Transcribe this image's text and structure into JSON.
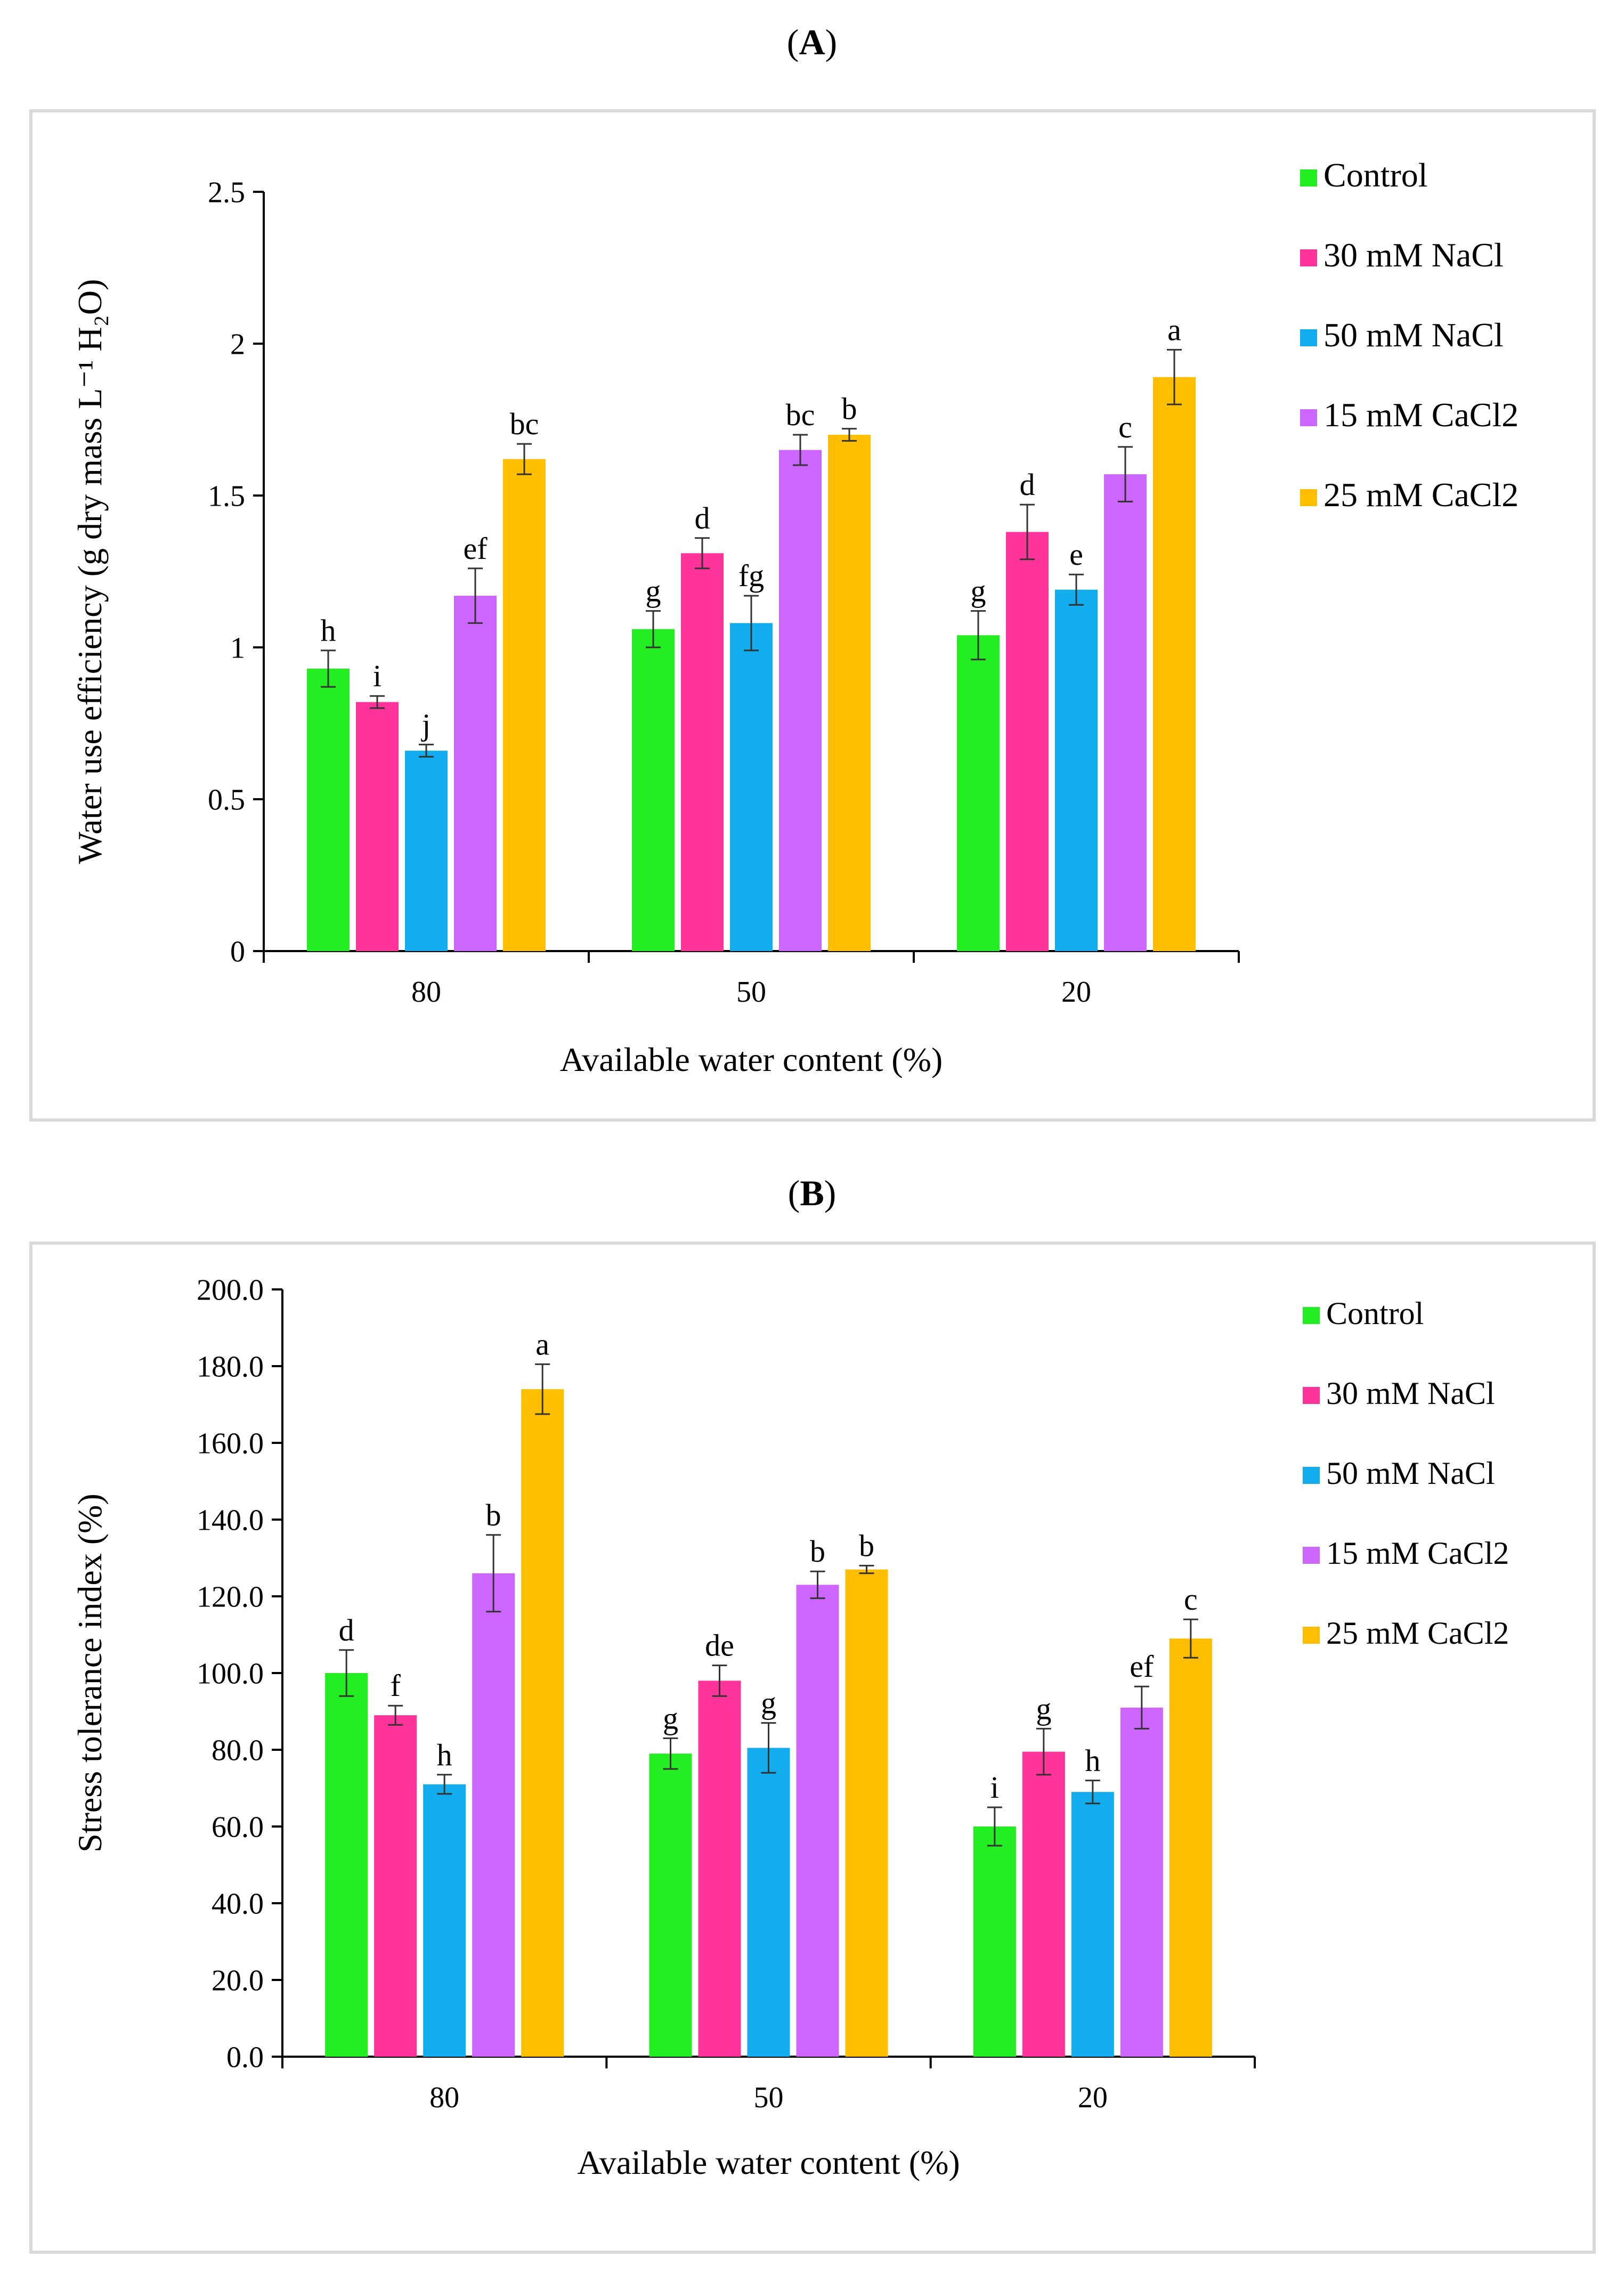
{
  "panels": [
    {
      "label": "A",
      "chart_data": {
        "type": "bar",
        "title": "(A)",
        "xlabel": "Available water content (%)",
        "ylabel": "Water use efficiency (g dry mass L⁻¹ H₂O)",
        "categories": [
          "80",
          "50",
          "20"
        ],
        "ylim": [
          0,
          2.5
        ],
        "yticks": [
          "0",
          "0.5",
          "1",
          "1.5",
          "2",
          "2.5"
        ],
        "ytick_values": [
          0,
          0.5,
          1,
          1.5,
          2,
          2.5
        ],
        "grid": false,
        "legend_position": "right",
        "series": [
          {
            "name": "Control",
            "color": "#22ee22",
            "values": [
              0.93,
              1.06,
              1.04
            ],
            "errors": [
              0.06,
              0.06,
              0.08
            ],
            "letters": [
              "h",
              "g",
              "g"
            ]
          },
          {
            "name": "30 mM NaCl",
            "color": "#ff3399",
            "values": [
              0.82,
              1.31,
              1.38
            ],
            "errors": [
              0.02,
              0.05,
              0.09
            ],
            "letters": [
              "i",
              "d",
              "d"
            ]
          },
          {
            "name": "50 mM NaCl",
            "color": "#12adef",
            "values": [
              0.66,
              1.08,
              1.19
            ],
            "errors": [
              0.02,
              0.09,
              0.05
            ],
            "letters": [
              "j",
              "fg",
              "e"
            ]
          },
          {
            "name": "15 mM CaCl2",
            "color": "#cc66ff",
            "values": [
              1.17,
              1.65,
              1.57
            ],
            "errors": [
              0.09,
              0.05,
              0.09
            ],
            "letters": [
              "ef",
              "bc",
              "c"
            ]
          },
          {
            "name": "25 mM CaCl2",
            "color": "#ffbf00",
            "values": [
              1.62,
              1.7,
              1.89
            ],
            "errors": [
              0.05,
              0.02,
              0.09
            ],
            "letters": [
              "bc",
              "b",
              "a"
            ]
          }
        ]
      }
    },
    {
      "label": "B",
      "chart_data": {
        "type": "bar",
        "title": "(B)",
        "xlabel": "Available water content (%)",
        "ylabel": "Stress tolerance index (%)",
        "categories": [
          "80",
          "50",
          "20"
        ],
        "ylim": [
          0,
          200
        ],
        "yticks": [
          "0.0",
          "20.0",
          "40.0",
          "60.0",
          "80.0",
          "100.0",
          "120.0",
          "140.0",
          "160.0",
          "180.0",
          "200.0"
        ],
        "ytick_values": [
          0,
          20,
          40,
          60,
          80,
          100,
          120,
          140,
          160,
          180,
          200
        ],
        "grid": false,
        "legend_position": "right",
        "series": [
          {
            "name": "Control",
            "color": "#22ee22",
            "values": [
              100.0,
              79.0,
              60.0
            ],
            "errors": [
              6.0,
              4.0,
              5.0
            ],
            "letters": [
              "d",
              "g",
              "i"
            ]
          },
          {
            "name": "30 mM NaCl",
            "color": "#ff3399",
            "values": [
              89.0,
              98.0,
              79.5
            ],
            "errors": [
              2.5,
              4.0,
              6.0
            ],
            "letters": [
              "f",
              "de",
              "g"
            ]
          },
          {
            "name": "50 mM NaCl",
            "color": "#12adef",
            "values": [
              71.0,
              80.5,
              69.0
            ],
            "errors": [
              2.5,
              6.5,
              3.0
            ],
            "letters": [
              "h",
              "g",
              "h"
            ]
          },
          {
            "name": "15 mM CaCl2",
            "color": "#cc66ff",
            "values": [
              126.0,
              123.0,
              91.0
            ],
            "errors": [
              10.0,
              3.5,
              5.5
            ],
            "letters": [
              "b",
              "b",
              "ef"
            ]
          },
          {
            "name": "25 mM CaCl2",
            "color": "#ffbf00",
            "values": [
              174.0,
              127.0,
              109.0
            ],
            "errors": [
              6.5,
              1.0,
              5.0
            ],
            "letters": [
              "a",
              "b",
              "c"
            ]
          }
        ]
      }
    }
  ]
}
